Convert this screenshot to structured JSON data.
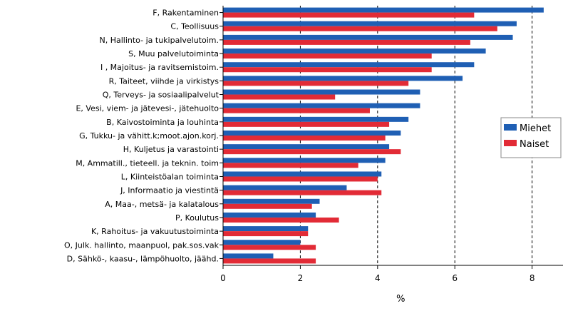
{
  "chart_data": {
    "type": "bar",
    "orientation": "horizontal",
    "categories": [
      "F, Rakentaminen",
      "C, Teollisuus",
      "N, Hallinto- ja tukipalvelutoim.",
      "S, Muu palvelutoiminta",
      "I , Majoitus- ja ravitsemistoim.",
      "R, Taiteet, viihde ja virkistys",
      "Q, Terveys- ja sosiaalipalvelut",
      "E, Vesi, viem- ja jätevesi-, jätehuolto",
      "B, Kaivostoiminta ja louhinta",
      "G, Tukku- ja vähitt.k;moot.ajon.korj.",
      "H, Kuljetus ja varastointi",
      "M, Ammatill., tieteell. ja teknin. toim",
      "L, Kiinteistöalan toiminta",
      "J, Informaatio ja viestintä",
      "A, Maa-, metsä- ja kalatalous",
      "P, Koulutus",
      "K, Rahoitus- ja vakuutustoiminta",
      "O, Julk. hallinto, maanpuol, pak.sos.vak",
      "D, Sähkö-, kaasu-, lämpöhuolto, jäähd."
    ],
    "series": [
      {
        "name": "Miehet",
        "color": "#1f5fb4",
        "values": [
          8.3,
          7.6,
          7.5,
          6.8,
          6.5,
          6.2,
          5.1,
          5.1,
          4.8,
          4.6,
          4.3,
          4.2,
          4.1,
          3.2,
          2.5,
          2.4,
          2.2,
          2.0,
          1.3
        ]
      },
      {
        "name": "Naiset",
        "color": "#e22b36",
        "values": [
          6.5,
          7.1,
          6.4,
          5.4,
          5.4,
          4.8,
          2.9,
          3.8,
          4.3,
          4.2,
          4.6,
          3.5,
          4.0,
          4.1,
          2.3,
          3.0,
          2.2,
          2.4,
          2.4
        ]
      }
    ],
    "xlim": [
      0,
      8.8
    ],
    "xticks": [
      0,
      2,
      4,
      6,
      8
    ],
    "xlabel": "%",
    "gridlines": "vertical dashed at 2, 4, 6, 8",
    "legend": "right"
  }
}
